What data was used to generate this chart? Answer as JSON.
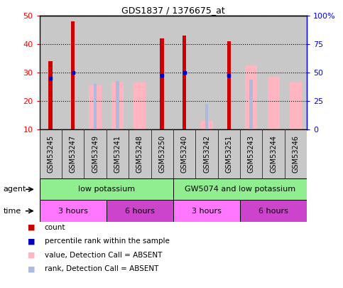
{
  "title": "GDS1837 / 1376675_at",
  "samples": [
    "GSM53245",
    "GSM53247",
    "GSM53249",
    "GSM53241",
    "GSM53248",
    "GSM53250",
    "GSM53240",
    "GSM53242",
    "GSM53251",
    "GSM53243",
    "GSM53244",
    "GSM53246"
  ],
  "count_values": [
    34,
    48,
    null,
    null,
    null,
    42,
    43,
    null,
    41,
    null,
    null,
    null
  ],
  "percentile_values": [
    28,
    30,
    null,
    null,
    null,
    29,
    30,
    null,
    29,
    null,
    null,
    null
  ],
  "absent_value_values": [
    null,
    null,
    25.5,
    26.5,
    26.5,
    null,
    null,
    13,
    null,
    32.5,
    28.5,
    26.5
  ],
  "absent_rank_values": [
    null,
    null,
    26,
    27,
    null,
    null,
    null,
    19,
    null,
    27.5,
    null,
    null
  ],
  "ylim_left": [
    10,
    50
  ],
  "ylim_right": [
    0,
    100
  ],
  "yticks_left": [
    10,
    20,
    30,
    40,
    50
  ],
  "yticks_right": [
    0,
    25,
    50,
    75,
    100
  ],
  "ytick_labels_right": [
    "0",
    "25",
    "50",
    "75",
    "100%"
  ],
  "agent_labels": [
    {
      "text": "low potassium",
      "start": 0,
      "end": 6,
      "color": "#90EE90"
    },
    {
      "text": "GW5074 and low potassium",
      "start": 6,
      "end": 12,
      "color": "#90EE90"
    }
  ],
  "time_labels": [
    {
      "text": "3 hours",
      "start": 0,
      "end": 3,
      "color": "#FF77FF"
    },
    {
      "text": "6 hours",
      "start": 3,
      "end": 6,
      "color": "#CC44CC"
    },
    {
      "text": "3 hours",
      "start": 6,
      "end": 9,
      "color": "#FF77FF"
    },
    {
      "text": "6 hours",
      "start": 9,
      "end": 12,
      "color": "#CC44CC"
    }
  ],
  "count_color": "#CC0000",
  "percentile_color": "#0000BB",
  "absent_value_color": "#FFB6C1",
  "absent_rank_color": "#AABBDD",
  "bg_color": "#C8C8C8",
  "legend_items": [
    {
      "label": "count",
      "color": "#CC0000"
    },
    {
      "label": "percentile rank within the sample",
      "color": "#0000BB"
    },
    {
      "label": "value, Detection Call = ABSENT",
      "color": "#FFB6C1"
    },
    {
      "label": "rank, Detection Call = ABSENT",
      "color": "#AABBDD"
    }
  ]
}
